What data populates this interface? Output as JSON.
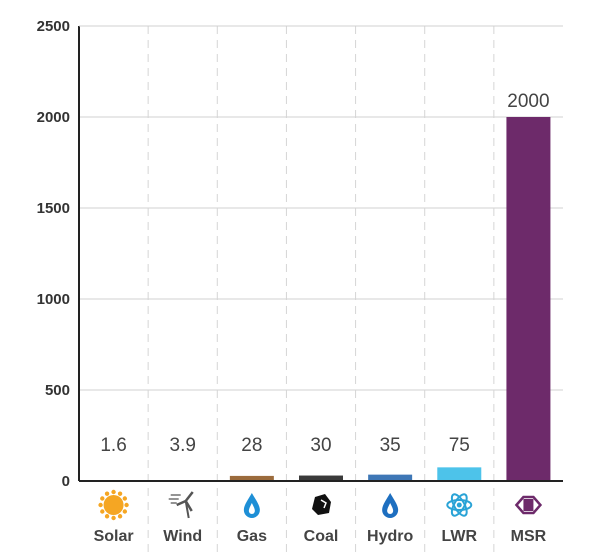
{
  "chart_data": {
    "type": "bar",
    "categories": [
      "Solar",
      "Wind",
      "Gas",
      "Coal",
      "Hydro",
      "LWR",
      "MSR"
    ],
    "values": [
      1.6,
      3.9,
      28,
      30,
      35,
      75,
      2000
    ],
    "data_labels": [
      "1.6",
      "3.9",
      "28",
      "30",
      "35",
      "75",
      "2000"
    ],
    "colors": [
      "#f5a623",
      "#5b2a5b",
      "#9b6b3c",
      "#3a3a3a",
      "#3e77b6",
      "#4dc3ea",
      "#6d2a6a"
    ],
    "icons": [
      "sun-icon",
      "wind-turbine-icon",
      "gas-flame-icon",
      "coal-icon",
      "water-drop-icon",
      "atom-icon",
      "msr-icon"
    ],
    "icon_colors": [
      "#f5a623",
      "#555555",
      "#1e8fd6",
      "#111111",
      "#1e6fc0",
      "#2aa3d6",
      "#6d2a6a"
    ],
    "yticks": [
      "0",
      "500",
      "1000",
      "1500",
      "2000",
      "2500"
    ],
    "ylim": [
      0,
      2500
    ],
    "title": "",
    "xlabel": "",
    "ylabel": "",
    "grid": "horizontal solid, vertical dashed"
  }
}
